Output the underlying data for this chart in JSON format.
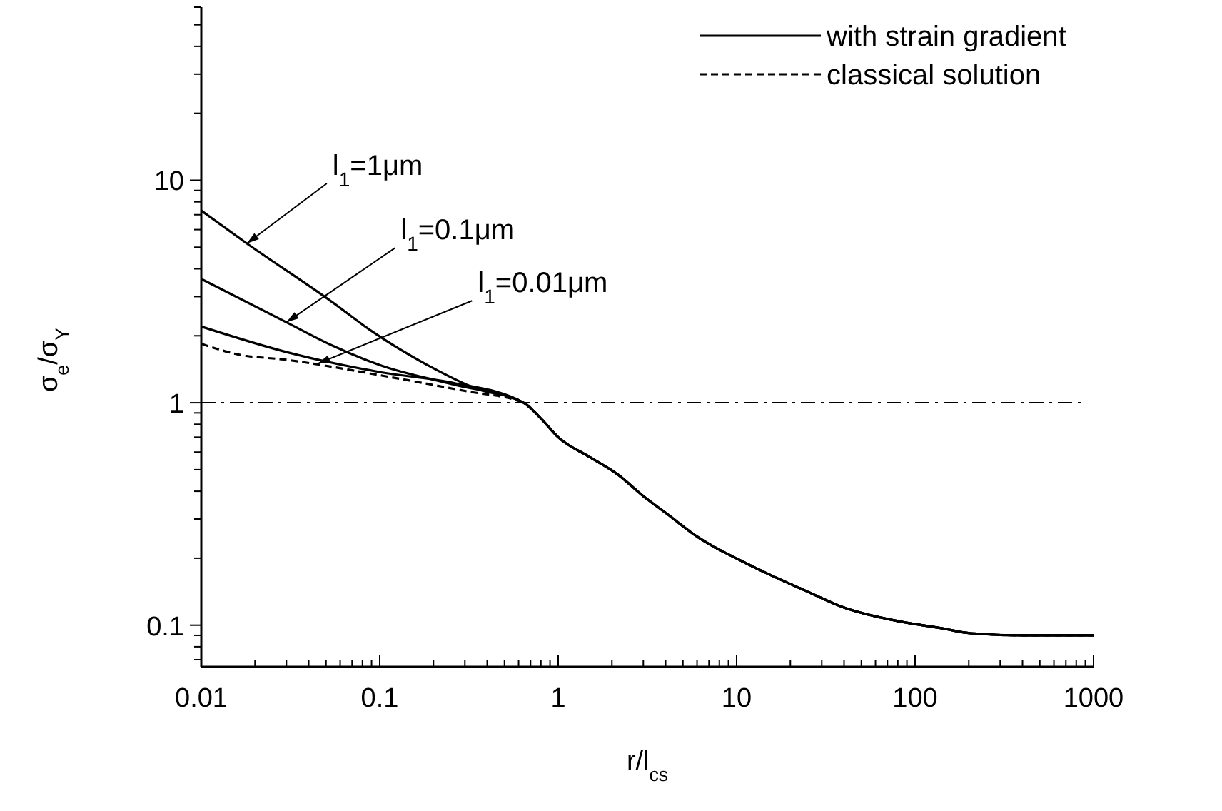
{
  "chart_data": {
    "type": "line",
    "xlabel": "r/l$_{cs}$",
    "ylabel": "σ$_{e}$/σ$_{Y}$",
    "log": "xy",
    "grid": false,
    "legend": "top right",
    "marker": "none",
    "xlim": [
      0.01,
      1000
    ],
    "ylim": [
      0.065,
      60
    ],
    "xticks": [
      0.01,
      {
        "value": 0.02,
        "label": null
      },
      {
        "value": 0.03,
        "label": null
      },
      {
        "value": 0.04,
        "label": null
      },
      {
        "value": 0.05,
        "label": null
      },
      {
        "value": 0.06,
        "label": null
      },
      {
        "value": 0.07,
        "label": null
      },
      {
        "value": 0.08,
        "label": null
      },
      {
        "value": 0.09,
        "label": null
      },
      0.1,
      {
        "value": 0.2,
        "label": null
      },
      {
        "value": 0.3,
        "label": null
      },
      {
        "value": 0.4,
        "label": null
      },
      {
        "value": 0.5,
        "label": null
      },
      {
        "value": 0.6,
        "label": null
      },
      {
        "value": 0.7,
        "label": null
      },
      {
        "value": 0.8,
        "label": null
      },
      {
        "value": 0.9,
        "label": null
      },
      1,
      {
        "value": 2,
        "label": null
      },
      {
        "value": 3,
        "label": null
      },
      {
        "value": 4,
        "label": null
      },
      {
        "value": 5,
        "label": null
      },
      {
        "value": 6,
        "label": null
      },
      {
        "value": 7,
        "label": null
      },
      {
        "value": 8,
        "label": null
      },
      {
        "value": 9,
        "label": null
      },
      10,
      {
        "value": 20,
        "label": null
      },
      {
        "value": 30,
        "label": null
      },
      {
        "value": 40,
        "label": null
      },
      {
        "value": 50,
        "label": null
      },
      {
        "value": 60,
        "label": null
      },
      {
        "value": 70,
        "label": null
      },
      {
        "value": 80,
        "label": null
      },
      {
        "value": 90,
        "label": null
      },
      100,
      {
        "value": 200,
        "label": null
      },
      {
        "value": 300,
        "label": null
      },
      {
        "value": 400,
        "label": null
      },
      {
        "value": 500,
        "label": null
      },
      {
        "value": 600,
        "label": null
      },
      {
        "value": 700,
        "label": null
      },
      {
        "value": 800,
        "label": null
      },
      {
        "value": 900,
        "label": null
      },
      1000
    ],
    "yticks": [
      {
        "value": 0.07,
        "label": null
      },
      {
        "value": 0.08,
        "label": null
      },
      {
        "value": 0.09,
        "label": null
      },
      0.1,
      {
        "value": 0.2,
        "label": null
      },
      {
        "value": 0.3,
        "label": null
      },
      {
        "value": 0.4,
        "label": null
      },
      {
        "value": 0.5,
        "label": null
      },
      {
        "value": 0.6,
        "label": null
      },
      {
        "value": 0.7,
        "label": null
      },
      {
        "value": 0.8,
        "label": null
      },
      {
        "value": 0.9,
        "label": null
      },
      1,
      {
        "value": 2,
        "label": null
      },
      {
        "value": 3,
        "label": null
      },
      {
        "value": 4,
        "label": null
      },
      {
        "value": 5,
        "label": null
      },
      {
        "value": 6,
        "label": null
      },
      {
        "value": 7,
        "label": null
      },
      {
        "value": 8,
        "label": null
      },
      {
        "value": 9,
        "label": null
      },
      10,
      {
        "value": 20,
        "label": null
      },
      {
        "value": 30,
        "label": null
      },
      {
        "value": 40,
        "label": null
      },
      {
        "value": 50,
        "label": null
      },
      {
        "value": 60,
        "label": null
      }
    ],
    "ref_lines": [
      {
        "axis": "y",
        "value": 1,
        "line_style": "dashdot",
        "color": "#000000"
      }
    ],
    "annotations": [
      {
        "text": "l$_{1}$=1μm",
        "x": 0.018,
        "y": 5.2
      },
      {
        "text": "l$_{1}$=0.1μm",
        "x": 0.03,
        "y": 2.3
      },
      {
        "text": "l$_{1}$=0.01μm",
        "x": 0.045,
        "y": 1.5
      }
    ],
    "series": [
      {
        "name": "with strain gradient",
        "color": "#000000",
        "line_style": "solid",
        "x": [
          0.01,
          0.018,
          0.054,
          0.09,
          0.187,
          0.344,
          0.64,
          0.8,
          1,
          1.5,
          2.17,
          3,
          4.06,
          6,
          10.7,
          15,
          23.8,
          40,
          81.7,
          140,
          205,
          405,
          1000
        ],
        "values": [
          7.3,
          5.2,
          2.84,
          2.1,
          1.47,
          1.16,
          1,
          0.85,
          0.7,
          0.57,
          0.474,
          0.38,
          0.317,
          0.25,
          0.194,
          0.17,
          0.144,
          0.12,
          0.104,
          0.097,
          0.092,
          0.09,
          0.09
        ]
      },
      {
        "color": "#000000",
        "line_style": "solid",
        "x": [
          0.01,
          0.03,
          0.054,
          0.102,
          0.256,
          0.64,
          0.8,
          1,
          1.5,
          2.17,
          3,
          4.06,
          6,
          10.7,
          15,
          23.8,
          40,
          81.7,
          140,
          205,
          405,
          1000
        ],
        "values": [
          3.6,
          2.3,
          1.81,
          1.47,
          1.21,
          1,
          0.85,
          0.7,
          0.57,
          0.474,
          0.38,
          0.317,
          0.25,
          0.194,
          0.17,
          0.144,
          0.12,
          0.104,
          0.097,
          0.092,
          0.09,
          0.09
        ]
      },
      {
        "color": "#000000",
        "line_style": "solid",
        "x": [
          0.01,
          0.03,
          0.102,
          0.256,
          0.64,
          0.8,
          1,
          1.5,
          2.17,
          3,
          4.06,
          6,
          10.7,
          15,
          23.8,
          40,
          81.7,
          140,
          205,
          405,
          1000
        ],
        "values": [
          2.2,
          1.69,
          1.37,
          1.23,
          1,
          0.85,
          0.7,
          0.57,
          0.474,
          0.38,
          0.317,
          0.25,
          0.194,
          0.17,
          0.144,
          0.12,
          0.104,
          0.097,
          0.092,
          0.09,
          0.09
        ]
      },
      {
        "name": "classical solution",
        "color": "#000000",
        "line_style": "dashed",
        "x": [
          0.01,
          0.016,
          0.03,
          0.1,
          0.3,
          0.64,
          0.8,
          1,
          1.5,
          2.17,
          3,
          4.06,
          6,
          10.7,
          15,
          23.8,
          40,
          81.7,
          140,
          205,
          405,
          1000
        ],
        "values": [
          1.84,
          1.65,
          1.56,
          1.33,
          1.13,
          1,
          0.85,
          0.7,
          0.57,
          0.474,
          0.38,
          0.317,
          0.25,
          0.194,
          0.17,
          0.144,
          0.12,
          0.104,
          0.097,
          0.092,
          0.09,
          0.09
        ]
      }
    ]
  }
}
